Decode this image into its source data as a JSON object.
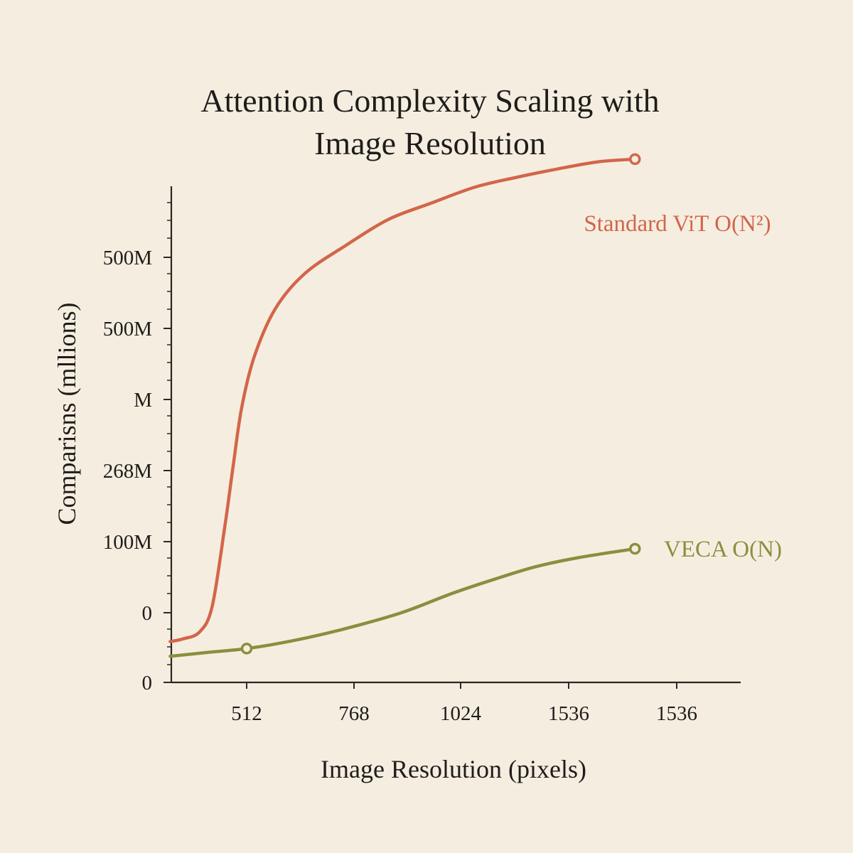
{
  "chart_data": {
    "type": "line",
    "title_line1": "Attention Complexity Scaling with",
    "title_line2": "Image Resolution",
    "xlabel": "Image Resolution (pixels)",
    "ylabel": "Comparisns (mllions)",
    "x_ticks": [
      "512",
      "768",
      "1024",
      "1536",
      "1536"
    ],
    "y_ticks": [
      "0",
      "0",
      "100M",
      "268M",
      "M",
      "500M",
      "500M"
    ],
    "grid": false,
    "legend": "inline labels at line ends",
    "series": [
      {
        "name": "Standard ViT O(N²)",
        "color": "#d2664a",
        "x": [
          330,
          360,
          400,
          430,
          460,
          480,
          500,
          530,
          580,
          650,
          750,
          850,
          950,
          1054,
          1150,
          1254,
          1350,
          1436
        ],
        "y": [
          -45,
          -41,
          -30,
          10,
          135,
          230,
          320,
          400,
          475,
          530,
          575,
          615,
          640,
          665,
          680,
          694,
          705,
          709
        ],
        "end_marker": true
      },
      {
        "name": "VECA O(N)",
        "color": "#8a8f3f",
        "x": [
          330,
          420,
          512,
          620,
          740,
          880,
          1000,
          1100,
          1200,
          1300,
          1436
        ],
        "y": [
          -68,
          -62,
          -56,
          -44,
          -26,
          0,
          30,
          52,
          72,
          86,
          100
        ],
        "start_marker": 512,
        "end_marker": true
      }
    ]
  }
}
